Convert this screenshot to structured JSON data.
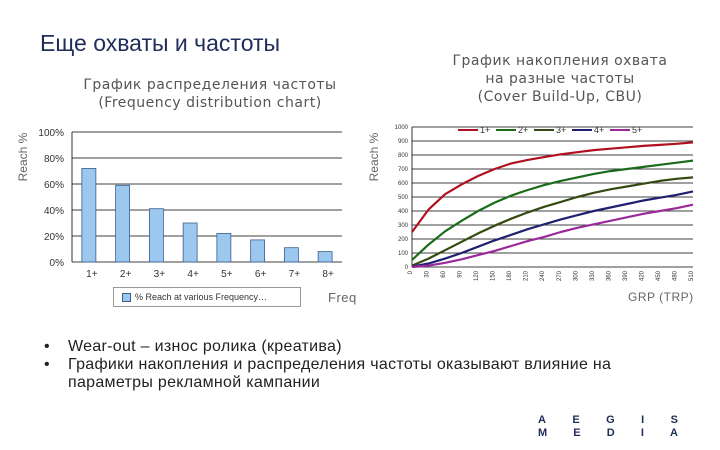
{
  "slide": {
    "title": "Еще охваты и частоты",
    "bullets": [
      "Wear-out – износ ролика (креатива)",
      "Графики накопления и распределения частоты оказывают влияние на параметры рекламной кампании"
    ],
    "logo": {
      "top": [
        "A",
        "E",
        "G",
        "I",
        "S"
      ],
      "bottom": [
        "M",
        "E",
        "D",
        "I",
        "A"
      ]
    }
  },
  "chart_data": [
    {
      "type": "bar",
      "title_line1": "График распределения частоты",
      "title_line2": "(Frequency distribution chart)",
      "ylabel": "Reach %",
      "xlabel": "Freq",
      "categories": [
        "1+",
        "2+",
        "3+",
        "4+",
        "5+",
        "6+",
        "7+",
        "8+"
      ],
      "values": [
        72,
        59,
        41,
        30,
        22,
        17,
        11,
        8
      ],
      "ylim": [
        0,
        100
      ],
      "yticks": [
        "0%",
        "20%",
        "40%",
        "60%",
        "80%",
        "100%"
      ],
      "ytick_values": [
        0,
        20,
        40,
        60,
        80,
        100
      ],
      "legend": "% Reach at various Frequency…",
      "color": "#9cc8f0",
      "grid": true
    },
    {
      "type": "line",
      "title_line1": "График накопления охвата",
      "title_line2": "на разные частоты",
      "title_line3": "(Cover Build-Up, CBU)",
      "ylabel": "Reach %",
      "xlabel": "GRP (TRP)",
      "ylim": [
        0,
        1000
      ],
      "ytick_values": [
        0,
        100,
        200,
        300,
        400,
        500,
        600,
        700,
        800,
        900,
        1000
      ],
      "yticks": [
        "0",
        "100",
        "200",
        "300",
        "400",
        "500",
        "600",
        "700",
        "800",
        "900",
        "1000"
      ],
      "xticks": [
        "0",
        "30",
        "60",
        "90",
        "120",
        "150",
        "180",
        "210",
        "240",
        "270",
        "300",
        "330",
        "360",
        "390",
        "420",
        "450",
        "480",
        "510"
      ],
      "x": [
        0,
        30,
        60,
        90,
        120,
        150,
        180,
        210,
        240,
        270,
        300,
        330,
        360,
        390,
        420,
        450,
        480,
        510
      ],
      "series": [
        {
          "name": "1+",
          "color": "#b01020",
          "values": [
            250,
            410,
            520,
            590,
            650,
            700,
            740,
            765,
            785,
            805,
            820,
            835,
            845,
            855,
            865,
            872,
            880,
            890
          ]
        },
        {
          "name": "2+",
          "color": "#1a6b1a",
          "values": [
            50,
            160,
            255,
            330,
            400,
            460,
            510,
            550,
            585,
            615,
            640,
            665,
            685,
            700,
            715,
            730,
            745,
            760
          ]
        },
        {
          "name": "3+",
          "color": "#344a12",
          "values": [
            10,
            60,
            120,
            180,
            240,
            295,
            345,
            390,
            430,
            465,
            500,
            530,
            555,
            575,
            595,
            615,
            630,
            640
          ]
        },
        {
          "name": "4+",
          "color": "#202070",
          "values": [
            2,
            25,
            60,
            100,
            145,
            190,
            230,
            270,
            305,
            340,
            370,
            400,
            425,
            450,
            475,
            495,
            515,
            540
          ]
        },
        {
          "name": "5+",
          "color": "#9a2a9a",
          "values": [
            0,
            10,
            30,
            55,
            85,
            115,
            150,
            185,
            215,
            250,
            280,
            305,
            330,
            355,
            380,
            400,
            420,
            445
          ]
        }
      ],
      "grid": true
    }
  ]
}
